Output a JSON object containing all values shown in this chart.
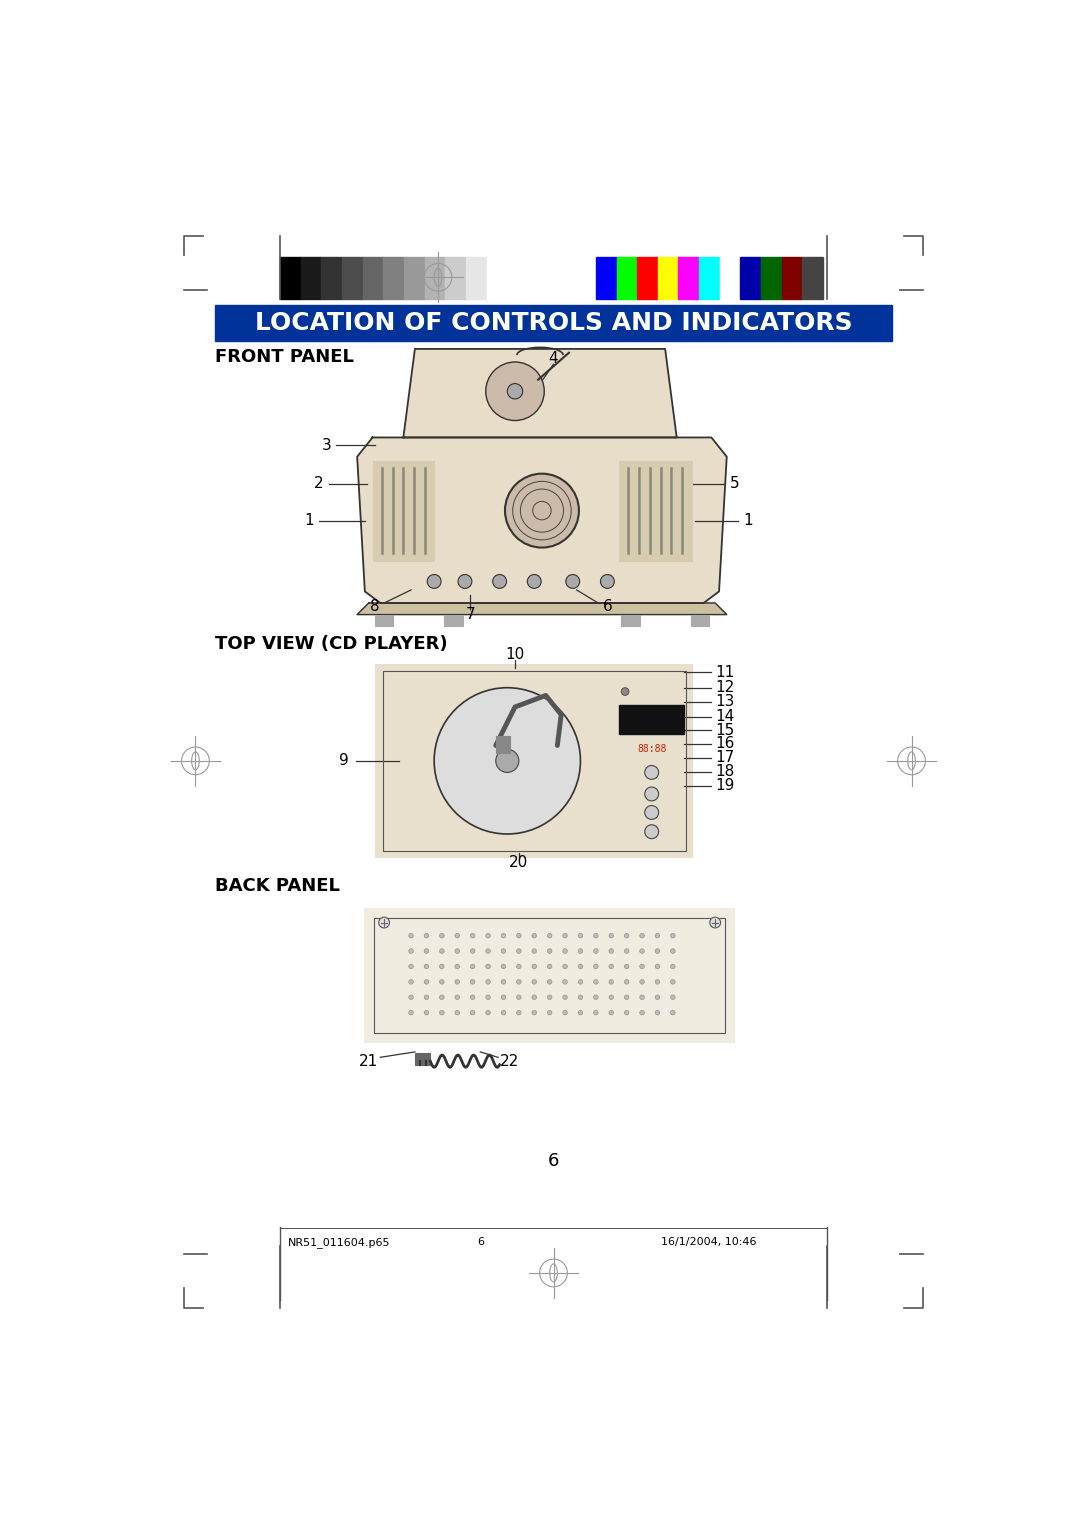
{
  "title": "LOCATION OF CONTROLS AND INDICATORS",
  "title_bg": "#003399",
  "title_color": "#ffffff",
  "section1": "FRONT PANEL",
  "section2": "TOP VIEW (CD PLAYER)",
  "section3": "BACK PANEL",
  "page_number": "6",
  "footer_left": "NR51_011604.p65",
  "footer_center": "6",
  "footer_right": "16/1/2004, 10:46",
  "bg_color": "#ffffff",
  "grayscale_bars": [
    "#000000",
    "#1a1a1a",
    "#333333",
    "#4d4d4d",
    "#666666",
    "#808080",
    "#999999",
    "#b3b3b3",
    "#cccccc",
    "#e6e6e6",
    "#ffffff"
  ],
  "color_bars": [
    "#0000ff",
    "#00ff00",
    "#ff0000",
    "#ffff00",
    "#ff00ff",
    "#00ffff",
    "#ffffff",
    "#0000aa",
    "#006600",
    "#800000",
    "#444444"
  ]
}
